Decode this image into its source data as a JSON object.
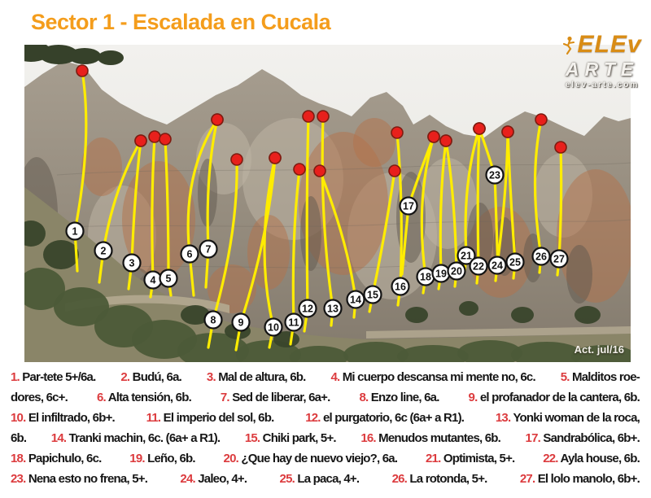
{
  "page": {
    "title": "Sector 1 - Escalada en Cucala",
    "updated": "Act. jul/16"
  },
  "logo": {
    "top": "ELEv",
    "bottom": "ARTE",
    "url": "elev-arte.com",
    "climber_icon": "climber-silhouette"
  },
  "colors": {
    "title_orange": "#F49D1C",
    "legend_red": "#DC3B3E",
    "route_yellow": "#FFEC00",
    "dot_red": "#E8201C",
    "dot_edge": "#7E1B10",
    "marker_fill": "#FFFFFF",
    "marker_stroke": "#141414"
  },
  "topo": {
    "routes": [
      {
        "n": "1",
        "c": [
          62,
          229
        ],
        "v": [
          84,
          115
        ],
        "d": [
          71,
          32
        ],
        "g": [
          65,
          278
        ]
      },
      {
        "n": "2",
        "c": [
          97,
          253
        ],
        "v": [
          110,
          175
        ],
        "d": [
          143,
          118
        ],
        "g": [
          92,
          292
        ]
      },
      {
        "n": "3",
        "c": [
          132,
          268
        ],
        "v": [
          135,
          185
        ],
        "d": [
          143,
          118
        ],
        "g": [
          128,
          300
        ]
      },
      {
        "n": "4",
        "c": [
          158,
          289
        ],
        "v": [
          155,
          195
        ],
        "d": [
          160,
          113
        ],
        "g": [
          155,
          310
        ]
      },
      {
        "n": "5",
        "c": [
          177,
          287
        ],
        "v": [
          177,
          195
        ],
        "d": [
          173,
          116
        ],
        "g": [
          180,
          308
        ]
      },
      {
        "n": "6",
        "c": [
          203,
          257
        ],
        "v": [
          193,
          160
        ],
        "d": [
          237,
          92
        ],
        "g": [
          208,
          308
        ]
      },
      {
        "n": "7",
        "c": [
          226,
          251
        ],
        "v": [
          222,
          160
        ],
        "d": [
          237,
          92
        ],
        "g": [
          223,
          298
        ]
      },
      {
        "n": "8",
        "c": [
          232,
          338
        ],
        "v": [
          263,
          230
        ],
        "d": [
          261,
          141
        ],
        "g": [
          226,
          372
        ]
      },
      {
        "n": "9",
        "c": [
          266,
          341
        ],
        "v": [
          300,
          235
        ],
        "d": [
          308,
          139
        ],
        "g": [
          260,
          375
        ]
      },
      {
        "n": "10",
        "c": [
          306,
          347
        ],
        "v": [
          283,
          250
        ],
        "d": [
          308,
          139
        ],
        "g": [
          301,
          372
        ]
      },
      {
        "n": "11",
        "c": [
          331,
          341
        ],
        "v": [
          328,
          240
        ],
        "d": [
          338,
          153
        ],
        "g": [
          327,
          368
        ]
      },
      {
        "n": "12",
        "c": [
          348,
          324
        ],
        "v": [
          346,
          200
        ],
        "d": [
          349,
          88
        ],
        "g": [
          344,
          352
        ]
      },
      {
        "n": "13",
        "c": [
          379,
          324
        ],
        "v": [
          363,
          215
        ],
        "d": [
          367,
          88
        ],
        "g": [
          377,
          345
        ]
      },
      {
        "n": "14",
        "c": [
          407,
          313
        ],
        "v": [
          397,
          240
        ],
        "d": [
          363,
          155
        ],
        "g": [
          405,
          335
        ]
      },
      {
        "n": "15",
        "c": [
          428,
          307
        ],
        "v": [
          444,
          230
        ],
        "d": [
          455,
          155
        ],
        "g": [
          424,
          328
        ]
      },
      {
        "n": "16",
        "c": [
          462,
          297
        ],
        "v": [
          466,
          195
        ],
        "d": [
          458,
          108
        ],
        "g": [
          459,
          320
        ]
      },
      {
        "n": "17",
        "c": [
          472,
          198
        ],
        "v": [
          490,
          145
        ],
        "d": [
          503,
          113
        ],
        "g": [
          464,
          282
        ]
      },
      {
        "n": "18",
        "c": [
          493,
          285
        ],
        "v": [
          480,
          190
        ],
        "d": [
          503,
          113
        ],
        "g": [
          490,
          305
        ]
      },
      {
        "n": "19",
        "c": [
          512,
          281
        ],
        "v": [
          509,
          190
        ],
        "d": [
          518,
          118
        ],
        "g": [
          509,
          300
        ]
      },
      {
        "n": "20",
        "c": [
          531,
          278
        ],
        "v": [
          529,
          185
        ],
        "d": [
          518,
          118
        ],
        "g": [
          529,
          297
        ]
      },
      {
        "n": "21",
        "c": [
          543,
          259
        ],
        "v": [
          538,
          170
        ],
        "d": [
          559,
          103
        ],
        "g": [
          541,
          278
        ]
      },
      {
        "n": "22",
        "c": [
          558,
          272
        ],
        "v": [
          556,
          175
        ],
        "d": [
          559,
          103
        ],
        "g": [
          556,
          293
        ]
      },
      {
        "n": "23",
        "c": [
          578,
          160
        ],
        "v": [
          567,
          125
        ],
        "d": [
          559,
          103
        ],
        "g": [
          582,
          278
        ]
      },
      {
        "n": "24",
        "c": [
          581,
          271
        ],
        "v": [
          593,
          180
        ],
        "d": [
          594,
          107
        ],
        "g": [
          579,
          290
        ]
      },
      {
        "n": "25",
        "c": [
          603,
          267
        ],
        "v": [
          597,
          185
        ],
        "d": [
          594,
          107
        ],
        "g": [
          601,
          287
        ]
      },
      {
        "n": "26",
        "c": [
          635,
          260
        ],
        "v": [
          620,
          165
        ],
        "d": [
          635,
          92
        ],
        "g": [
          633,
          280
        ]
      },
      {
        "n": "27",
        "c": [
          657,
          263
        ],
        "v": [
          661,
          190
        ],
        "d": [
          659,
          126
        ],
        "g": [
          655,
          283
        ]
      }
    ]
  },
  "legend": {
    "lines": [
      [
        {
          "n": "1.",
          "t": "Par-tete 5+/6a."
        },
        {
          "n": "2.",
          "t": "Budú, 6a."
        },
        {
          "n": "3.",
          "t": "Mal de altura, 6b."
        },
        {
          "n": "4.",
          "t": "Mi cuerpo descansa mi mente no, 6c."
        },
        {
          "n": "5.",
          "t": "Malditos roe-"
        }
      ],
      [
        {
          "n": "",
          "t": "dores, 6c+."
        },
        {
          "n": "6.",
          "t": "Alta tensión, 6b."
        },
        {
          "n": "7.",
          "t": "Sed de liberar, 6a+."
        },
        {
          "n": "8.",
          "t": "Enzo line, 6a."
        },
        {
          "n": "9.",
          "t": "el profanador de la cantera, 6b."
        }
      ],
      [
        {
          "n": "10.",
          "t": "El infiltrado, 6b+."
        },
        {
          "n": "11.",
          "t": "El imperio del sol, 6b."
        },
        {
          "n": "12.",
          "t": "el purgatorio, 6c (6a+ a R1)."
        },
        {
          "n": "13.",
          "t": "Yonki woman de la roca,"
        }
      ],
      [
        {
          "n": "",
          "t": "6b."
        },
        {
          "n": "14.",
          "t": "Tranki machin, 6c. (6a+ a R1)."
        },
        {
          "n": "15.",
          "t": "Chiki park, 5+."
        },
        {
          "n": "16.",
          "t": "Menudos mutantes, 6b."
        },
        {
          "n": "17.",
          "t": "Sandrabólica, 6b+."
        }
      ],
      [
        {
          "n": "18.",
          "t": "Papichulo, 6c."
        },
        {
          "n": "19.",
          "t": "Leño, 6b."
        },
        {
          "n": "20.",
          "t": "¿Que hay de nuevo viejo?, 6a."
        },
        {
          "n": "21.",
          "t": "Optimista, 5+."
        },
        {
          "n": "22.",
          "t": "Ayla house, 6b."
        }
      ],
      [
        {
          "n": "23.",
          "t": "Nena esto no frena, 5+."
        },
        {
          "n": "24.",
          "t": "Jaleo, 4+."
        },
        {
          "n": "25.",
          "t": "La paca, 4+."
        },
        {
          "n": "26.",
          "t": "La rotonda, 5+."
        },
        {
          "n": "27.",
          "t": "El lolo manolo, 6b+."
        }
      ]
    ]
  }
}
